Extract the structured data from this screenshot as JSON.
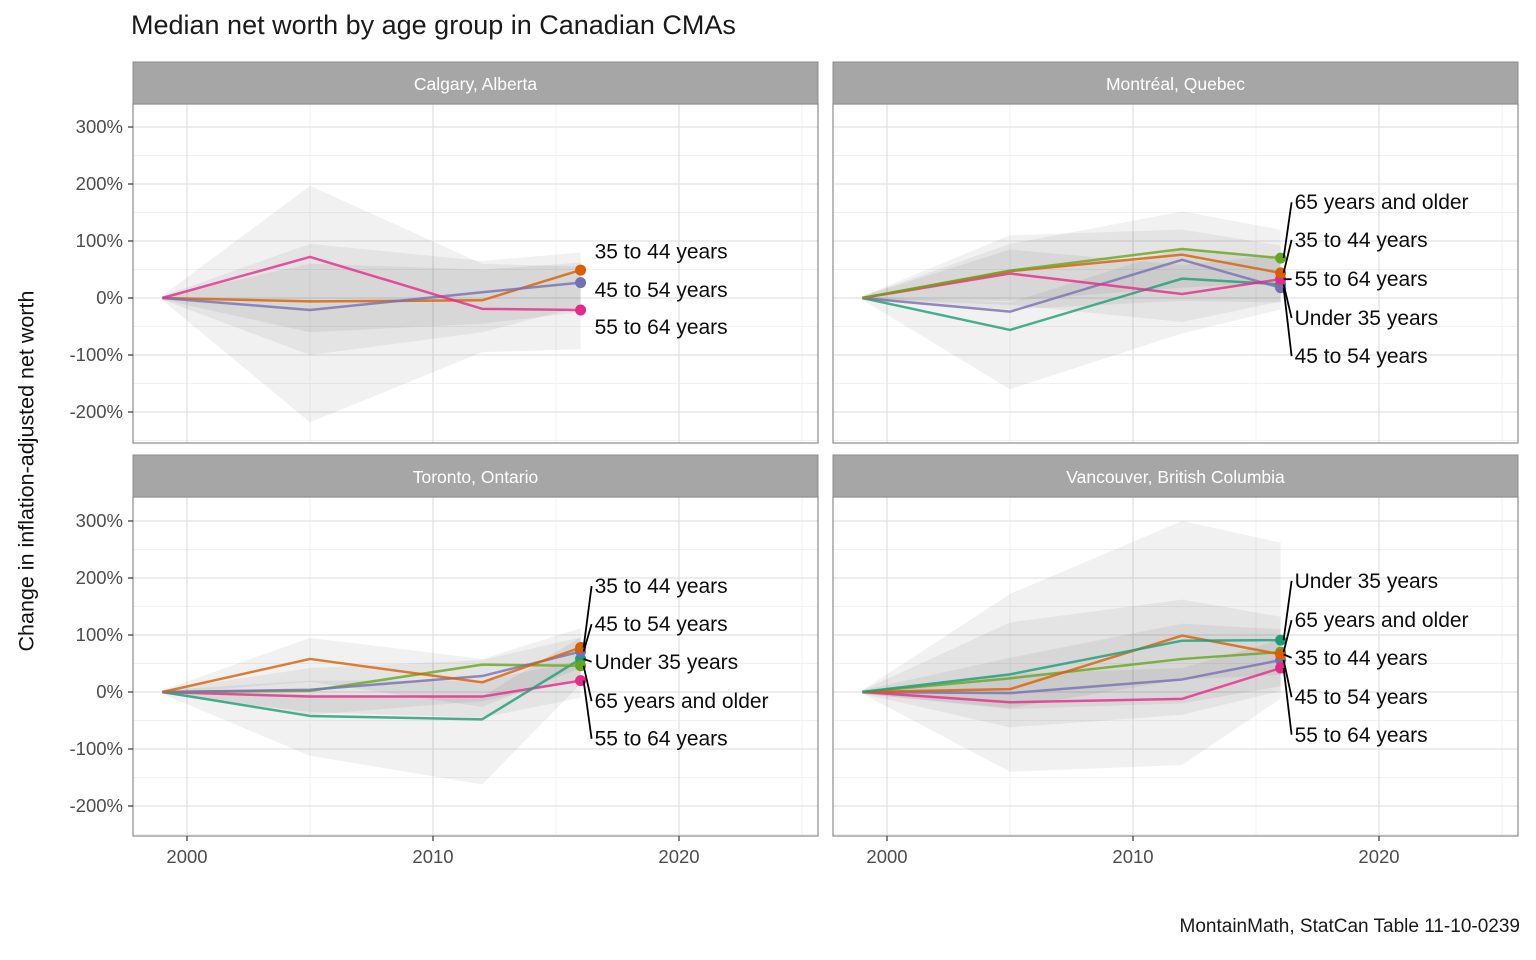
{
  "title": "Median net worth by age group in Canadian CMAs",
  "y_axis_title": "Change in inflation-adjusted net worth",
  "caption": "MontainMath, StatCan Table 11-10-0239",
  "axes": {
    "x_tick_labels": [
      "2000",
      "2010",
      "2020"
    ],
    "x_tick_values": [
      2000,
      2010,
      2020
    ],
    "x_minor_values": [
      2005,
      2015,
      2025
    ],
    "y_tick_labels": [
      "300%",
      "200%",
      "100%",
      "0%",
      "-100%",
      "-200%"
    ],
    "y_tick_values": [
      300,
      200,
      100,
      0,
      -100,
      -200
    ],
    "y_minor_values": [
      -250,
      -150,
      -50,
      50,
      150,
      250
    ]
  },
  "colors": {
    "Under 35 years": "#1B9E77",
    "35 to 44 years": "#D95F02",
    "45 to 54 years": "#7570B3",
    "55 to 64 years": "#E7298A",
    "65 years and older": "#66A61E",
    "strip_bg": "#A6A6A6",
    "strip_text": "#FFFFFF",
    "panel_bg": "#FFFFFF",
    "panel_border": "#8C8C8C",
    "grid_major": "#E2E2E2",
    "grid_minor": "#F0F0F0",
    "tick_mark": "#333333",
    "tick_text": "#4D4D4D",
    "ribbon_fill": "rgba(60,60,60,0.07)",
    "label_text": "#0D0D0D",
    "leader_line": "#000000"
  },
  "chart_data": [
    {
      "type": "line",
      "facet": "Calgary, Alberta",
      "x": [
        1999,
        2005,
        2012,
        2016
      ],
      "x_axis_range": [
        1997.8,
        2025.6
      ],
      "y_axis_range_pct": [
        -254,
        340
      ],
      "ribbons": [
        {
          "series": "55 to 64 years",
          "points": [
            [
              1999,
              4,
              -4
            ],
            [
              2005,
              197,
              -218
            ],
            [
              2012,
              60,
              -95
            ],
            [
              2016,
              55,
              -90
            ]
          ]
        },
        {
          "series": "45 to 54 years",
          "points": [
            [
              1999,
              3,
              -3
            ],
            [
              2005,
              95,
              -100
            ],
            [
              2012,
              65,
              -60
            ],
            [
              2016,
              80,
              -15
            ]
          ]
        },
        {
          "series": "35 to 44 years",
          "points": [
            [
              1999,
              3,
              -3
            ],
            [
              2005,
              60,
              -60
            ],
            [
              2012,
              50,
              -45
            ],
            [
              2016,
              62,
              -25
            ]
          ]
        }
      ],
      "series": [
        {
          "name": "35 to 44 years",
          "values_pct": [
            0,
            -6,
            -4,
            49
          ]
        },
        {
          "name": "45 to 54 years",
          "values_pct": [
            0,
            -21,
            10,
            27
          ]
        },
        {
          "name": "55 to 64 years",
          "values_pct": [
            0,
            72,
            -19,
            -21
          ]
        }
      ],
      "labels": [
        {
          "text": "35 to 44 years",
          "series": "35 to 44 years",
          "label_y_pct": 82,
          "leader": false
        },
        {
          "text": "45 to 54 years",
          "series": "45 to 54 years",
          "label_y_pct": 14,
          "leader": false
        },
        {
          "text": "55 to 64 years",
          "series": "55 to 64 years",
          "label_y_pct": -51,
          "leader": false
        }
      ]
    },
    {
      "type": "line",
      "facet": "Montréal, Quebec",
      "x": [
        1999,
        2005,
        2012,
        2016
      ],
      "x_axis_range": [
        1997.8,
        2025.6
      ],
      "y_axis_range_pct": [
        -254,
        340
      ],
      "ribbons": [
        {
          "series": "65 years and older",
          "points": [
            [
              1999,
              3,
              -3
            ],
            [
              2005,
              95,
              -5
            ],
            [
              2012,
              152,
              18
            ],
            [
              2016,
              120,
              28
            ]
          ]
        },
        {
          "series": "35 to 44 years",
          "points": [
            [
              1999,
              3,
              -3
            ],
            [
              2005,
              110,
              -20
            ],
            [
              2012,
              120,
              -5
            ],
            [
              2016,
              92,
              -8
            ]
          ]
        },
        {
          "series": "Under 35 years",
          "points": [
            [
              1999,
              3,
              -3
            ],
            [
              2005,
              -8,
              -160
            ],
            [
              2012,
              88,
              -62
            ],
            [
              2016,
              70,
              -20
            ]
          ]
        },
        {
          "series": "55 to 64 years",
          "points": [
            [
              1999,
              3,
              -3
            ],
            [
              2005,
              85,
              -12
            ],
            [
              2012,
              58,
              -42
            ],
            [
              2016,
              76,
              -6
            ]
          ]
        }
      ],
      "series": [
        {
          "name": "Under 35 years",
          "values_pct": [
            0,
            -56,
            34,
            24
          ]
        },
        {
          "name": "45 to 54 years",
          "values_pct": [
            0,
            -24,
            67,
            18
          ]
        },
        {
          "name": "55 to 64 years",
          "values_pct": [
            0,
            43,
            7,
            33
          ]
        },
        {
          "name": "35 to 44 years",
          "values_pct": [
            0,
            47,
            76,
            44
          ]
        },
        {
          "name": "65 years and older",
          "values_pct": [
            0,
            48,
            86,
            70
          ]
        }
      ],
      "labels": [
        {
          "text": "65 years and older",
          "series": "65 years and older",
          "label_y_pct": 168,
          "leader": true
        },
        {
          "text": "35 to 44 years",
          "series": "35 to 44 years",
          "label_y_pct": 102,
          "leader": true
        },
        {
          "text": "55 to 64 years",
          "series": "55 to 64 years",
          "label_y_pct": 33,
          "leader": true
        },
        {
          "text": "Under 35 years",
          "series": "Under 35 years",
          "label_y_pct": -35,
          "leader": true
        },
        {
          "text": "45 to 54 years",
          "series": "45 to 54 years",
          "label_y_pct": -102,
          "leader": true
        }
      ]
    },
    {
      "type": "line",
      "facet": "Toronto, Ontario",
      "x": [
        1999,
        2005,
        2012,
        2016
      ],
      "x_axis_range": [
        1997.8,
        2025.6
      ],
      "y_axis_range_pct": [
        -254,
        340
      ],
      "ribbons": [
        {
          "series": "35 to 44 years",
          "points": [
            [
              1999,
              3,
              -3
            ],
            [
              2005,
              95,
              18
            ],
            [
              2012,
              58,
              -26
            ],
            [
              2016,
              112,
              42
            ]
          ]
        },
        {
          "series": "Under 35 years",
          "points": [
            [
              1999,
              3,
              -3
            ],
            [
              2005,
              -4,
              -112
            ],
            [
              2012,
              -8,
              -162
            ],
            [
              2016,
              96,
              14
            ]
          ]
        },
        {
          "series": "45 to 54 years",
          "points": [
            [
              1999,
              3,
              -3
            ],
            [
              2005,
              42,
              -40
            ],
            [
              2012,
              56,
              -16
            ],
            [
              2016,
              96,
              20
            ]
          ]
        },
        {
          "series": "55 to 64 years",
          "points": [
            [
              1999,
              3,
              -3
            ],
            [
              2005,
              20,
              -35
            ],
            [
              2012,
              20,
              -45
            ],
            [
              2016,
              55,
              -10
            ]
          ]
        }
      ],
      "series": [
        {
          "name": "55 to 64 years",
          "values_pct": [
            0,
            -8,
            -8,
            20
          ]
        },
        {
          "name": "Under 35 years",
          "values_pct": [
            0,
            -42,
            -48,
            58
          ]
        },
        {
          "name": "65 years and older",
          "values_pct": [
            0,
            2,
            48,
            46
          ]
        },
        {
          "name": "45 to 54 years",
          "values_pct": [
            0,
            4,
            28,
            71
          ]
        },
        {
          "name": "35 to 44 years",
          "values_pct": [
            0,
            58,
            17,
            78
          ]
        }
      ],
      "labels": [
        {
          "text": "35 to 44 years",
          "series": "35 to 44 years",
          "label_y_pct": 186,
          "leader": true
        },
        {
          "text": "45 to 54 years",
          "series": "45 to 54 years",
          "label_y_pct": 119,
          "leader": true
        },
        {
          "text": "Under 35 years",
          "series": "Under 35 years",
          "label_y_pct": 53,
          "leader": true
        },
        {
          "text": "65 years and older",
          "series": "65 years and older",
          "label_y_pct": -16,
          "leader": true
        },
        {
          "text": "55 to 64 years",
          "series": "55 to 64 years",
          "label_y_pct": -82,
          "leader": true
        }
      ]
    },
    {
      "type": "line",
      "facet": "Vancouver, British Columbia",
      "x": [
        1999,
        2005,
        2012,
        2016
      ],
      "x_axis_range": [
        1997.8,
        2025.6
      ],
      "y_axis_range_pct": [
        -254,
        340
      ],
      "ribbons": [
        {
          "series": "Under 35 years",
          "points": [
            [
              1999,
              3,
              -3
            ],
            [
              2005,
              172,
              -28
            ],
            [
              2012,
              300,
              22
            ],
            [
              2016,
              262,
              30
            ]
          ]
        },
        {
          "series": "35 to 44 years",
          "points": [
            [
              1999,
              3,
              -3
            ],
            [
              2005,
              122,
              -62
            ],
            [
              2012,
              162,
              -40
            ],
            [
              2016,
              132,
              2
            ]
          ]
        },
        {
          "series": "55 to 64 years",
          "points": [
            [
              1999,
              3,
              -3
            ],
            [
              2005,
              32,
              -140
            ],
            [
              2012,
              42,
              -128
            ],
            [
              2016,
              92,
              -12
            ]
          ]
        },
        {
          "series": "65 years and older",
          "points": [
            [
              1999,
              3,
              -3
            ],
            [
              2005,
              60,
              -30
            ],
            [
              2012,
              120,
              -20
            ],
            [
              2016,
              110,
              10
            ]
          ]
        }
      ],
      "series": [
        {
          "name": "45 to 54 years",
          "values_pct": [
            0,
            -2,
            22,
            56
          ]
        },
        {
          "name": "55 to 64 years",
          "values_pct": [
            0,
            -18,
            -12,
            42
          ]
        },
        {
          "name": "65 years and older",
          "values_pct": [
            0,
            24,
            58,
            70
          ]
        },
        {
          "name": "35 to 44 years",
          "values_pct": [
            0,
            5,
            99,
            66
          ]
        },
        {
          "name": "Under 35 years",
          "values_pct": [
            0,
            31,
            90,
            91
          ]
        }
      ],
      "labels": [
        {
          "text": "Under 35 years",
          "series": "Under 35 years",
          "label_y_pct": 195,
          "leader": true
        },
        {
          "text": "65 years and older",
          "series": "65 years and older",
          "label_y_pct": 126,
          "leader": true
        },
        {
          "text": "35 to 44 years",
          "series": "35 to 44 years",
          "label_y_pct": 60,
          "leader": true
        },
        {
          "text": "45 to 54 years",
          "series": "45 to 54 years",
          "label_y_pct": -9,
          "leader": true
        },
        {
          "text": "55 to 64 years",
          "series": "55 to 64 years",
          "label_y_pct": -75,
          "leader": true
        }
      ]
    }
  ]
}
